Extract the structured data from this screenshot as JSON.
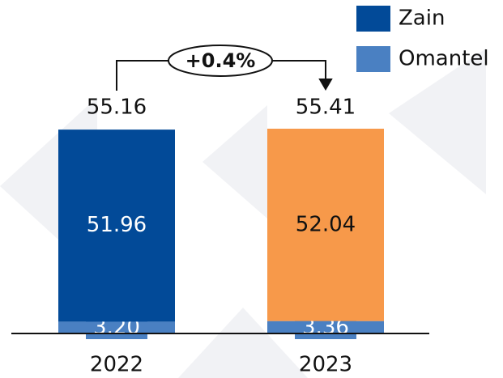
{
  "chart_data": {
    "type": "stacked-bar",
    "annotation": "+0.4%",
    "categories": [
      "2022",
      "2023"
    ],
    "series": [
      {
        "name": "Omantel",
        "color": "#4a80c2",
        "values": [
          3.2,
          3.36
        ],
        "value_labels": [
          "3.20",
          "3.36"
        ]
      },
      {
        "name": "Zain",
        "color": "#024a98",
        "colors": [
          "#024a98",
          "#f7994a"
        ],
        "values": [
          51.96,
          52.04
        ]
      }
    ],
    "totals": [
      55.16,
      55.41
    ],
    "ylim": [
      0,
      60
    ],
    "legend": "top-right"
  }
}
